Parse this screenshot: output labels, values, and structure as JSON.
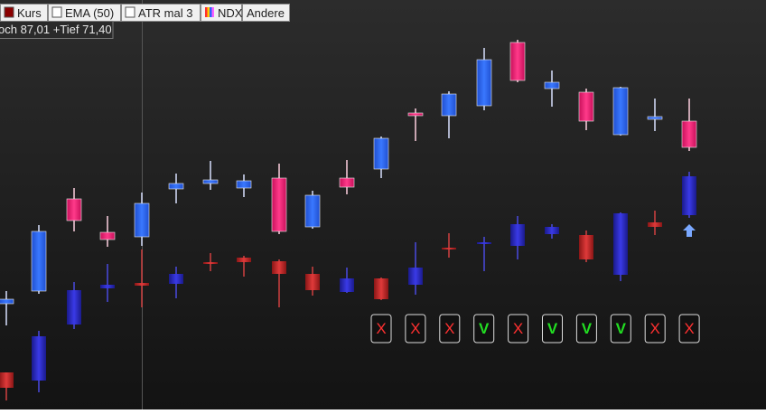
{
  "toolbar": {
    "items": [
      {
        "label": "Kurs",
        "swatch": "#8b0000"
      },
      {
        "label": "EMA (50)",
        "swatch": "none"
      },
      {
        "label": "ATR mal 3",
        "swatch": "none"
      },
      {
        "label": "NDX",
        "swatch": "multi"
      },
      {
        "label": "Andere",
        "swatch": "none"
      }
    ]
  },
  "info_label": "och 87,01 +Tief 71,40",
  "signals": [
    {
      "label": "X",
      "color": "#ff3030"
    },
    {
      "label": "X",
      "color": "#ff3030"
    },
    {
      "label": "X",
      "color": "#ff3030"
    },
    {
      "label": "V",
      "color": "#22dd22"
    },
    {
      "label": "X",
      "color": "#ff3030"
    },
    {
      "label": "V",
      "color": "#22dd22"
    },
    {
      "label": "V",
      "color": "#22dd22"
    },
    {
      "label": "V",
      "color": "#22dd22"
    },
    {
      "label": "X",
      "color": "#ff3030"
    },
    {
      "label": "X",
      "color": "#ff3030"
    }
  ]
}
